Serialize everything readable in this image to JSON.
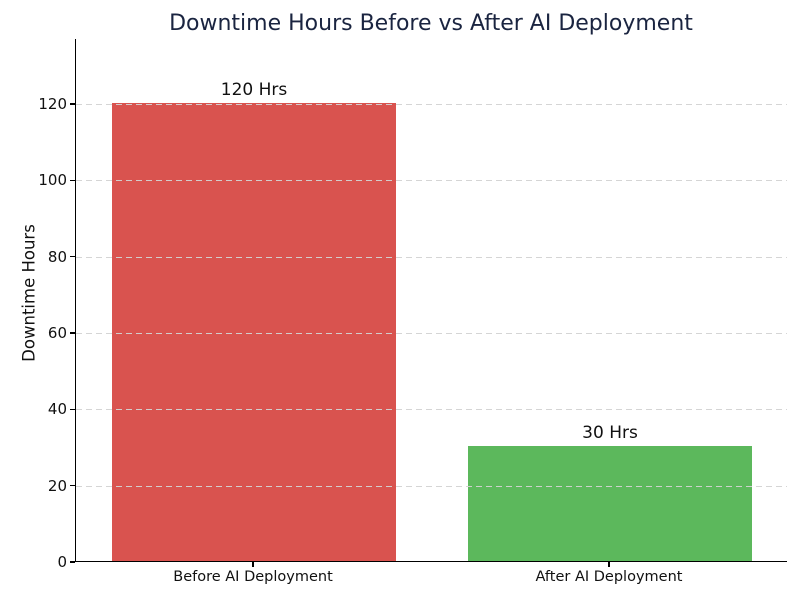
{
  "chart_data": {
    "type": "bar",
    "title": "Downtime Hours Before vs After AI Deployment",
    "ylabel": "Downtime Hours",
    "xlabel": "",
    "categories": [
      "Before AI Deployment",
      "After AI Deployment"
    ],
    "values": [
      120,
      30
    ],
    "value_labels": [
      "120 Hrs",
      "30 Hrs"
    ],
    "bar_colors": [
      "#d9534f",
      "#5cb85c"
    ],
    "yticks": [
      0,
      20,
      40,
      60,
      80,
      100,
      120
    ],
    "ylim": [
      0,
      137
    ],
    "bar_width_fraction": 0.8,
    "grid": {
      "axis": "y",
      "style": "dashed",
      "color": "#d3d3d3"
    },
    "legend": "none",
    "title_color": "#1a2440",
    "axis_text_color": "#111111",
    "background": "#ffffff"
  }
}
